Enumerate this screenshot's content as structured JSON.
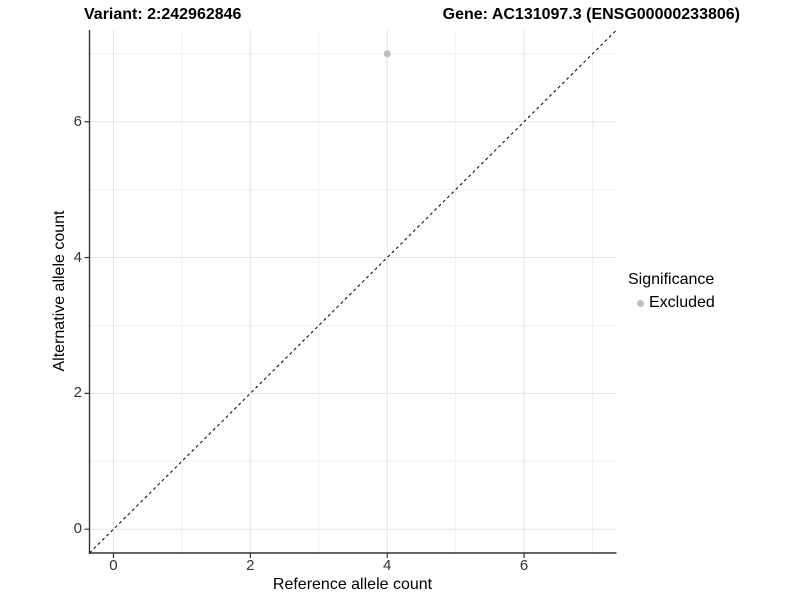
{
  "titles": {
    "left": "Variant: 2:242962846",
    "right": "Gene: AC131097.3 (ENSG00000233806)"
  },
  "axes": {
    "x_title": "Reference allele count",
    "y_title": "Alternative allele count",
    "x_tick_labels": [
      "0",
      "2",
      "4",
      "6"
    ],
    "y_tick_labels": [
      "0",
      "2",
      "4",
      "6"
    ]
  },
  "legend": {
    "title": "Significance",
    "items": [
      {
        "label": "Excluded",
        "color": "#bdbdbd"
      }
    ]
  },
  "chart_data": {
    "type": "scatter",
    "title": "Variant: 2:242962846 | Gene: AC131097.3 (ENSG00000233806)",
    "xlabel": "Reference allele count",
    "ylabel": "Alternative allele count",
    "xlim": [
      -0.35,
      7.35
    ],
    "ylim": [
      -0.35,
      7.35
    ],
    "x_major_breaks": [
      0,
      2,
      4,
      6
    ],
    "x_minor_breaks": [
      1,
      3,
      5,
      7
    ],
    "y_major_breaks": [
      0,
      2,
      4,
      6
    ],
    "y_minor_breaks": [
      1,
      3,
      5,
      7
    ],
    "grid": "on",
    "legend_position": "right",
    "series": [
      {
        "name": "Excluded",
        "color": "#bdbdbd",
        "points": [
          {
            "x": 4,
            "y": 7
          }
        ]
      }
    ],
    "reference_line": {
      "slope": 1,
      "intercept": 0,
      "style": "dashed",
      "color": "#111111"
    }
  },
  "colors": {
    "background": "#ffffff",
    "grid_major": "#e3e3e3",
    "grid_minor": "#f0f0f0",
    "axis_line": "#333333",
    "tick_mark": "#333333",
    "tick_label": "#333333",
    "point": "#bdbdbd"
  }
}
